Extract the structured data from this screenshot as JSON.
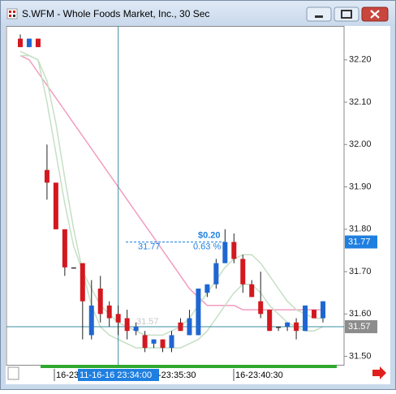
{
  "window": {
    "title": "S.WFM - Whole Foods Market, Inc., 30 Sec"
  },
  "chart_data": {
    "type": "candlestick",
    "open": [
      32.25,
      32.23,
      32.25,
      31.94,
      31.91,
      31.8,
      31.71,
      31.72,
      31.55,
      31.66,
      31.62,
      31.6,
      31.59,
      31.56,
      31.55,
      31.53,
      31.54,
      31.52,
      31.58,
      31.55,
      31.55,
      31.65,
      31.67,
      31.72,
      31.77,
      31.73,
      31.67,
      31.63,
      31.61,
      31.57,
      31.57,
      31.58,
      31.56,
      31.61,
      31.59
    ],
    "high": [
      32.26,
      32.25,
      32.25,
      32.0,
      31.91,
      31.8,
      31.71,
      31.72,
      31.68,
      31.69,
      31.63,
      31.62,
      31.61,
      31.58,
      31.56,
      31.54,
      31.54,
      31.56,
      31.59,
      31.61,
      31.66,
      31.67,
      31.73,
      31.8,
      31.79,
      31.74,
      31.68,
      31.7,
      31.61,
      31.57,
      31.58,
      31.59,
      31.62,
      31.61,
      31.63
    ],
    "low": [
      32.23,
      32.23,
      32.23,
      31.87,
      31.8,
      31.69,
      31.71,
      31.54,
      31.54,
      31.58,
      31.57,
      31.55,
      31.54,
      31.55,
      31.51,
      31.52,
      31.51,
      31.51,
      31.56,
      31.55,
      31.55,
      31.64,
      31.66,
      31.72,
      31.72,
      31.65,
      31.64,
      31.59,
      31.56,
      31.56,
      31.56,
      31.54,
      31.56,
      31.59,
      31.58
    ],
    "close": [
      32.23,
      32.25,
      32.23,
      31.91,
      31.8,
      31.71,
      31.71,
      31.63,
      31.62,
      31.6,
      31.59,
      31.58,
      31.56,
      31.57,
      31.52,
      31.54,
      31.52,
      31.55,
      31.56,
      31.59,
      31.66,
      31.67,
      31.72,
      31.77,
      31.73,
      31.67,
      31.64,
      31.6,
      31.56,
      31.57,
      31.58,
      31.56,
      31.62,
      31.59,
      31.63
    ],
    "up_color": "#1f66d1",
    "down_color": "#d3181f",
    "flat_color": "#333333",
    "series": [
      {
        "color": "#f29cc0",
        "values": [
          32.21,
          32.2,
          32.17,
          32.14,
          32.11,
          32.08,
          32.05,
          32.02,
          31.99,
          31.96,
          31.93,
          31.9,
          31.87,
          31.84,
          31.81,
          31.78,
          31.75,
          31.72,
          31.69,
          31.66,
          31.64,
          31.62,
          31.62,
          31.62,
          31.62,
          31.61,
          31.61,
          31.61,
          31.61,
          31.61,
          31.61,
          31.61,
          31.61,
          31.61,
          31.61
        ]
      },
      {
        "color": "#c5dfc5",
        "values": [
          32.21,
          32.21,
          32.2,
          32.1,
          31.98,
          31.86,
          31.76,
          31.7,
          31.66,
          31.62,
          31.6,
          31.58,
          31.57,
          31.56,
          31.55,
          31.55,
          31.55,
          31.56,
          31.57,
          31.59,
          31.62,
          31.65,
          31.68,
          31.71,
          31.73,
          31.74,
          31.74,
          31.72,
          31.69,
          31.66,
          31.63,
          31.61,
          31.6,
          31.59,
          31.59
        ]
      },
      {
        "color": "#c5dfc5",
        "values": [
          32.22,
          32.21,
          32.2,
          32.15,
          32.05,
          31.92,
          31.8,
          31.7,
          31.62,
          31.57,
          31.55,
          31.54,
          31.53,
          31.52,
          31.52,
          31.52,
          31.52,
          31.52,
          31.52,
          31.53,
          31.54,
          31.56,
          31.59,
          31.62,
          31.65,
          31.67,
          31.67,
          31.65,
          31.62,
          31.6,
          31.58,
          31.57,
          31.56,
          31.56,
          31.57
        ]
      }
    ],
    "ylim": [
      31.48,
      32.28
    ],
    "yticks": [
      {
        "value": 32.2,
        "label": "32.20"
      },
      {
        "value": 32.1,
        "label": "32.10"
      },
      {
        "value": 32.0,
        "label": "32.00"
      },
      {
        "value": 31.9,
        "label": "31.90"
      },
      {
        "value": 31.8,
        "label": "31.80"
      },
      {
        "value": 31.7,
        "label": "31.70"
      },
      {
        "value": 31.6,
        "label": "31.60"
      },
      {
        "value": 31.5,
        "label": "31.50"
      }
    ],
    "last_price": 31.77,
    "cursor_price": 31.57,
    "measure": {
      "change": "$0.20",
      "price": 31.77,
      "percent": "0.63 %",
      "base": 31.57
    },
    "time_labels": [
      "16-23",
      "11-16-16 23:34:00",
      "-23:35:30",
      "16-23:40:30"
    ]
  }
}
